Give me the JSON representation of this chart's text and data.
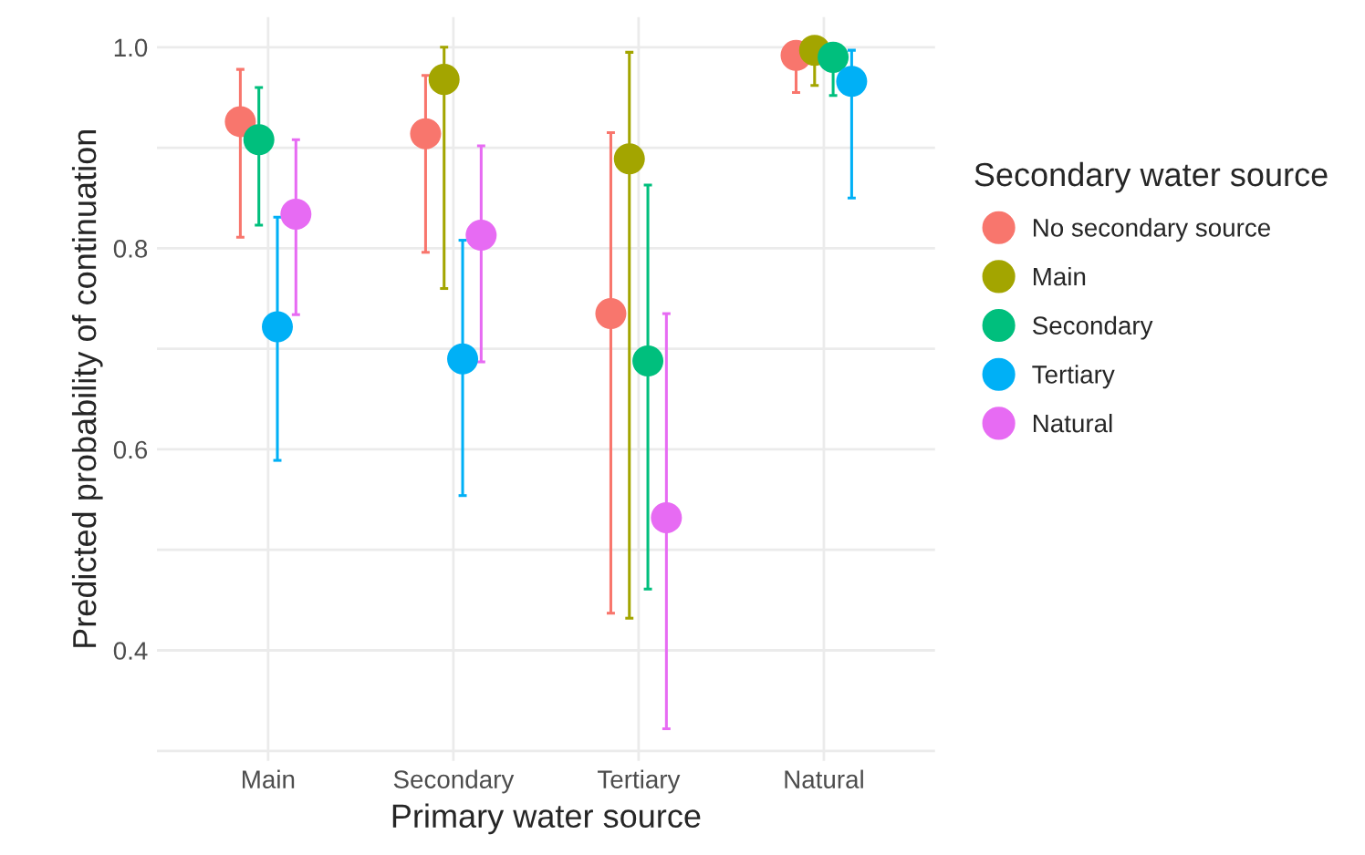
{
  "chart_data": {
    "type": "scatter",
    "xlabel": "Primary water source",
    "ylabel": "Predicted probability of continuation",
    "legend_title": "Secondary water source",
    "legend": "right",
    "grid": true,
    "marker": "circle",
    "categories": [
      "Main",
      "Secondary",
      "Tertiary",
      "Natural"
    ],
    "ylim": [
      0.29,
      1.03
    ],
    "yticks": [
      {
        "value": 0.3,
        "label": null
      },
      0.4,
      {
        "value": 0.5,
        "label": null
      },
      0.6,
      {
        "value": 0.7,
        "label": null
      },
      0.8,
      {
        "value": 0.9,
        "label": null
      },
      {
        "value": 1.0,
        "label": "1.0"
      }
    ],
    "series": [
      {
        "name": "No secondary source",
        "color": "#f8766d",
        "values": [
          0.926,
          0.914,
          0.735,
          0.992
        ],
        "errors": [
          [
            0.811,
            0.978
          ],
          [
            0.796,
            0.972
          ],
          [
            0.437,
            0.915
          ],
          [
            0.955,
            1.0
          ]
        ]
      },
      {
        "name": "Main",
        "color": "#a3a500",
        "values": [
          null,
          0.968,
          0.889,
          0.997
        ],
        "errors": [
          null,
          [
            0.76,
            1.0
          ],
          [
            0.432,
            0.995
          ],
          [
            0.962,
            1.0
          ]
        ]
      },
      {
        "name": "Secondary",
        "color": "#00bf7d",
        "values": [
          0.908,
          null,
          0.688,
          0.99
        ],
        "errors": [
          [
            0.823,
            0.96
          ],
          null,
          [
            0.461,
            0.863
          ],
          [
            0.952,
            1.0
          ]
        ]
      },
      {
        "name": "Tertiary",
        "color": "#00b0f6",
        "values": [
          0.722,
          0.69,
          null,
          0.966
        ],
        "errors": [
          [
            0.589,
            0.831
          ],
          [
            0.554,
            0.808
          ],
          null,
          [
            0.85,
            0.997
          ]
        ]
      },
      {
        "name": "Natural",
        "color": "#e76bf3",
        "values": [
          0.834,
          0.813,
          0.532,
          null
        ],
        "errors": [
          [
            0.734,
            0.908
          ],
          [
            0.687,
            0.902
          ],
          [
            0.322,
            0.735
          ],
          null
        ]
      }
    ]
  }
}
